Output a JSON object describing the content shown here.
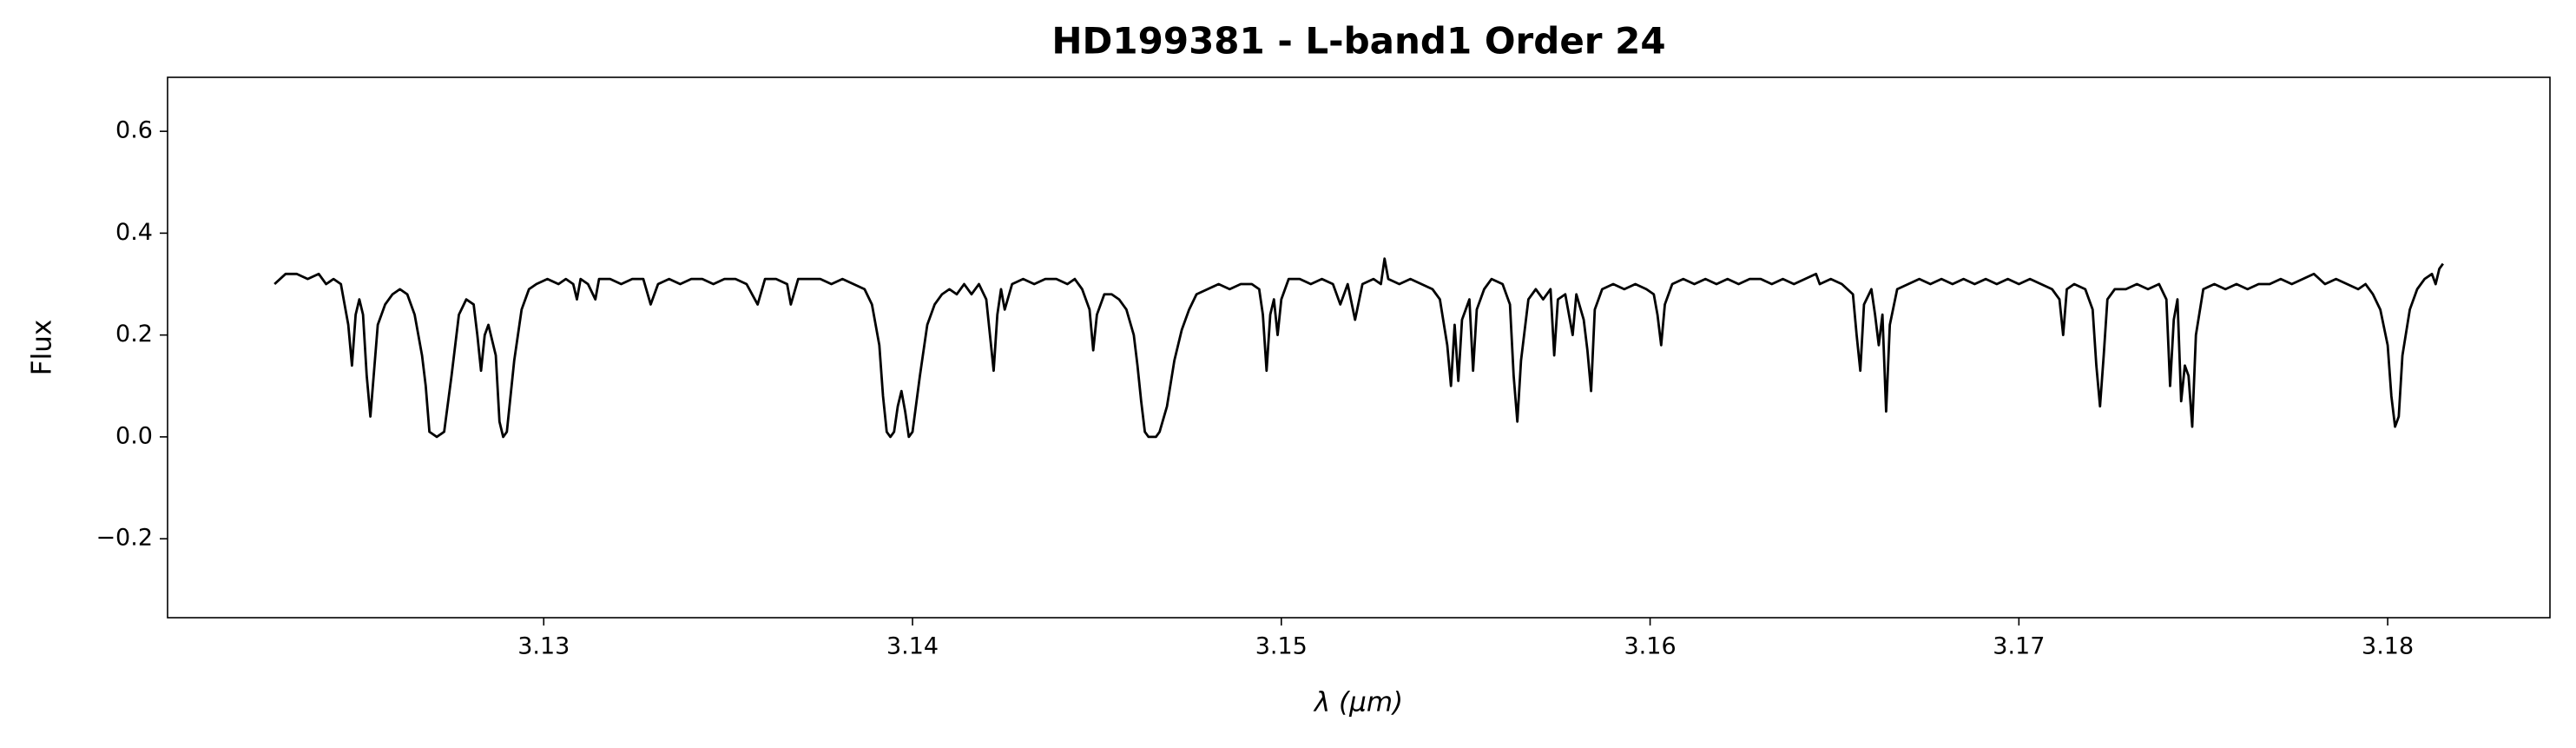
{
  "chart_data": {
    "type": "line",
    "title": "HD199381 - L-band1 Order 24",
    "xlabel": "λ (μm)",
    "ylabel": "Flux",
    "color": "#000000",
    "xlim": [
      3.1198,
      3.1844
    ],
    "ylim": [
      -0.355,
      0.706
    ],
    "xticks": [
      3.13,
      3.14,
      3.15,
      3.16,
      3.17,
      3.18
    ],
    "yticks": [
      {
        "value": -0.2,
        "label": "−0.2"
      },
      {
        "value": 0,
        "label": "0.0"
      },
      0.2,
      0.4,
      0.6
    ],
    "x": [
      3.1227,
      3.123,
      3.1233,
      3.1236,
      3.1239,
      3.1241,
      3.1243,
      3.1245,
      3.1247,
      3.1248,
      3.1249,
      3.125,
      3.1251,
      3.1252,
      3.1253,
      3.1255,
      3.1257,
      3.1259,
      3.1261,
      3.1263,
      3.1265,
      3.1267,
      3.1268,
      3.1269,
      3.1271,
      3.1273,
      3.1275,
      3.1277,
      3.1279,
      3.1281,
      3.1282,
      3.1283,
      3.1284,
      3.1285,
      3.1287,
      3.1288,
      3.1289,
      3.129,
      3.1292,
      3.1294,
      3.1296,
      3.1298,
      3.1301,
      3.1304,
      3.1306,
      3.1308,
      3.1309,
      3.131,
      3.1312,
      3.1314,
      3.1315,
      3.1318,
      3.1321,
      3.1324,
      3.1327,
      3.1329,
      3.1331,
      3.1334,
      3.1337,
      3.134,
      3.1343,
      3.1346,
      3.1349,
      3.1352,
      3.1355,
      3.1358,
      3.136,
      3.1363,
      3.1366,
      3.1367,
      3.1369,
      3.1372,
      3.1375,
      3.1378,
      3.1381,
      3.1384,
      3.1387,
      3.1389,
      3.1391,
      3.1392,
      3.1393,
      3.1394,
      3.1395,
      3.1396,
      3.1397,
      3.1398,
      3.1399,
      3.14,
      3.1402,
      3.1404,
      3.1406,
      3.1408,
      3.141,
      3.1412,
      3.1414,
      3.1416,
      3.1418,
      3.142,
      3.1421,
      3.1422,
      3.1423,
      3.1424,
      3.1425,
      3.1427,
      3.143,
      3.1433,
      3.1436,
      3.1439,
      3.1442,
      3.1444,
      3.1446,
      3.1448,
      3.1449,
      3.145,
      3.1452,
      3.1454,
      3.1456,
      3.1458,
      3.146,
      3.1461,
      3.1462,
      3.1463,
      3.1464,
      3.1466,
      3.1467,
      3.1469,
      3.1471,
      3.1473,
      3.1475,
      3.1477,
      3.148,
      3.1483,
      3.1486,
      3.1489,
      3.1492,
      3.1494,
      3.1495,
      3.1496,
      3.1497,
      3.1498,
      3.1499,
      3.15,
      3.1502,
      3.1505,
      3.1508,
      3.1511,
      3.1514,
      3.1516,
      3.1518,
      3.152,
      3.1522,
      3.1525,
      3.1527,
      3.1528,
      3.1529,
      3.1532,
      3.1535,
      3.1538,
      3.1541,
      3.1543,
      3.1545,
      3.1546,
      3.1547,
      3.1548,
      3.1549,
      3.1551,
      3.1552,
      3.1553,
      3.1555,
      3.1557,
      3.156,
      3.1562,
      3.1563,
      3.1564,
      3.1565,
      3.1567,
      3.1569,
      3.1571,
      3.1573,
      3.1574,
      3.1575,
      3.1577,
      3.1579,
      3.158,
      3.1582,
      3.1583,
      3.1584,
      3.1585,
      3.1587,
      3.159,
      3.1593,
      3.1596,
      3.1599,
      3.1601,
      3.1602,
      3.1603,
      3.1604,
      3.1606,
      3.1609,
      3.1612,
      3.1615,
      3.1618,
      3.1621,
      3.1624,
      3.1627,
      3.163,
      3.1633,
      3.1636,
      3.1639,
      3.1642,
      3.1645,
      3.1646,
      3.1649,
      3.1652,
      3.1655,
      3.1656,
      3.1657,
      3.1658,
      3.166,
      3.1661,
      3.1662,
      3.1663,
      3.1664,
      3.1665,
      3.1667,
      3.167,
      3.1673,
      3.1676,
      3.1679,
      3.1682,
      3.1685,
      3.1688,
      3.1691,
      3.1694,
      3.1697,
      3.17,
      3.1703,
      3.1706,
      3.1709,
      3.1711,
      3.1712,
      3.1713,
      3.1715,
      3.1718,
      3.172,
      3.1721,
      3.1722,
      3.1723,
      3.1724,
      3.1726,
      3.1729,
      3.1732,
      3.1735,
      3.1738,
      3.174,
      3.1741,
      3.1742,
      3.1743,
      3.1744,
      3.1745,
      3.1746,
      3.1747,
      3.1748,
      3.175,
      3.1753,
      3.1756,
      3.1759,
      3.1762,
      3.1765,
      3.1768,
      3.1771,
      3.1774,
      3.1777,
      3.178,
      3.1783,
      3.1786,
      3.1789,
      3.1792,
      3.1794,
      3.1796,
      3.1798,
      3.18,
      3.1801,
      3.1802,
      3.1803,
      3.1804,
      3.1806,
      3.1808,
      3.181,
      3.1812,
      3.1813,
      3.1814,
      3.1815
    ],
    "values": [
      0.3,
      0.32,
      0.32,
      0.31,
      0.32,
      0.3,
      0.31,
      0.3,
      0.22,
      0.14,
      0.24,
      0.27,
      0.24,
      0.12,
      0.04,
      0.22,
      0.26,
      0.28,
      0.29,
      0.28,
      0.24,
      0.16,
      0.1,
      0.01,
      0.0,
      0.01,
      0.12,
      0.24,
      0.27,
      0.26,
      0.2,
      0.13,
      0.2,
      0.22,
      0.16,
      0.03,
      0.0,
      0.01,
      0.15,
      0.25,
      0.29,
      0.3,
      0.31,
      0.3,
      0.31,
      0.3,
      0.27,
      0.31,
      0.3,
      0.27,
      0.31,
      0.31,
      0.3,
      0.31,
      0.31,
      0.26,
      0.3,
      0.31,
      0.3,
      0.31,
      0.31,
      0.3,
      0.31,
      0.31,
      0.3,
      0.26,
      0.31,
      0.31,
      0.3,
      0.26,
      0.31,
      0.31,
      0.31,
      0.3,
      0.31,
      0.3,
      0.29,
      0.26,
      0.18,
      0.08,
      0.01,
      0.0,
      0.01,
      0.06,
      0.09,
      0.05,
      0.0,
      0.01,
      0.12,
      0.22,
      0.26,
      0.28,
      0.29,
      0.28,
      0.3,
      0.28,
      0.3,
      0.27,
      0.2,
      0.13,
      0.24,
      0.29,
      0.25,
      0.3,
      0.31,
      0.3,
      0.31,
      0.31,
      0.3,
      0.31,
      0.29,
      0.25,
      0.17,
      0.24,
      0.28,
      0.28,
      0.27,
      0.25,
      0.2,
      0.14,
      0.07,
      0.01,
      0.0,
      0.0,
      0.01,
      0.06,
      0.15,
      0.21,
      0.25,
      0.28,
      0.29,
      0.3,
      0.29,
      0.3,
      0.3,
      0.29,
      0.24,
      0.13,
      0.24,
      0.27,
      0.2,
      0.27,
      0.31,
      0.31,
      0.3,
      0.31,
      0.3,
      0.26,
      0.3,
      0.23,
      0.3,
      0.31,
      0.3,
      0.35,
      0.31,
      0.3,
      0.31,
      0.3,
      0.29,
      0.27,
      0.18,
      0.1,
      0.22,
      0.11,
      0.23,
      0.27,
      0.13,
      0.25,
      0.29,
      0.31,
      0.3,
      0.26,
      0.12,
      0.03,
      0.15,
      0.27,
      0.29,
      0.27,
      0.29,
      0.16,
      0.27,
      0.28,
      0.2,
      0.28,
      0.23,
      0.17,
      0.09,
      0.25,
      0.29,
      0.3,
      0.29,
      0.3,
      0.29,
      0.28,
      0.24,
      0.18,
      0.26,
      0.3,
      0.31,
      0.3,
      0.31,
      0.3,
      0.31,
      0.3,
      0.31,
      0.31,
      0.3,
      0.31,
      0.3,
      0.31,
      0.32,
      0.3,
      0.31,
      0.3,
      0.28,
      0.2,
      0.13,
      0.26,
      0.29,
      0.24,
      0.18,
      0.24,
      0.05,
      0.22,
      0.29,
      0.3,
      0.31,
      0.3,
      0.31,
      0.3,
      0.31,
      0.3,
      0.31,
      0.3,
      0.31,
      0.3,
      0.31,
      0.3,
      0.29,
      0.27,
      0.2,
      0.29,
      0.3,
      0.29,
      0.25,
      0.14,
      0.06,
      0.16,
      0.27,
      0.29,
      0.29,
      0.3,
      0.29,
      0.3,
      0.27,
      0.1,
      0.23,
      0.27,
      0.07,
      0.14,
      0.12,
      0.02,
      0.2,
      0.29,
      0.3,
      0.29,
      0.3,
      0.29,
      0.3,
      0.3,
      0.31,
      0.3,
      0.31,
      0.32,
      0.3,
      0.31,
      0.3,
      0.29,
      0.3,
      0.28,
      0.25,
      0.18,
      0.08,
      0.02,
      0.04,
      0.16,
      0.25,
      0.29,
      0.31,
      0.32,
      0.3,
      0.33,
      0.34
    ]
  }
}
